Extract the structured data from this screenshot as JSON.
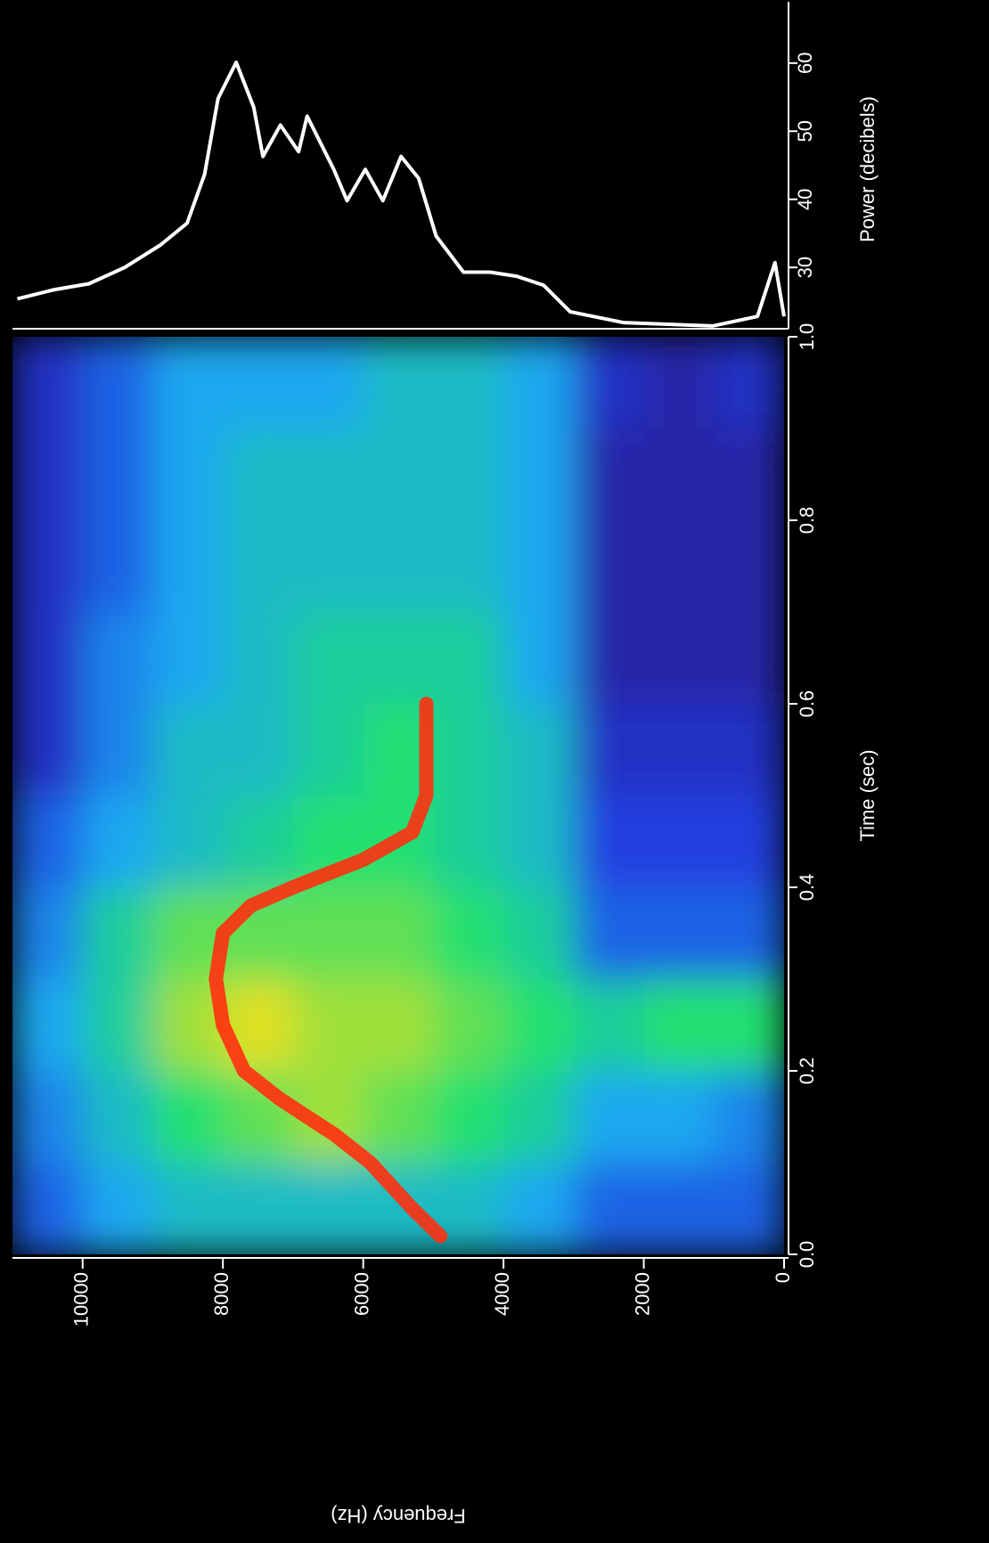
{
  "chart_data": [
    {
      "type": "line",
      "ylabel": "Power (decibels)",
      "x": [
        0,
        130,
        380,
        1020,
        2290,
        3050,
        3430,
        3810,
        4190,
        4570,
        4960,
        5210,
        5460,
        5720,
        5970,
        6230,
        6420,
        6800,
        6920,
        7180,
        7430,
        7560,
        7810,
        8070,
        8260,
        8510,
        8890,
        9400,
        9910,
        10420,
        10930
      ],
      "values": [
        22.8,
        30.7,
        22.8,
        21.4,
        21.9,
        23.5,
        27.4,
        28.7,
        29.3,
        29.3,
        34.6,
        43.1,
        46.3,
        39.8,
        44.4,
        39.8,
        44.4,
        52.2,
        47.0,
        50.9,
        46.3,
        53.5,
        60.1,
        54.8,
        43.7,
        36.5,
        33.3,
        30.0,
        27.6,
        26.7,
        25.4
      ],
      "color": "#ffffff",
      "xlim": [
        0,
        11000
      ],
      "ylim": [
        21,
        69
      ],
      "yticks": [
        30,
        40,
        50,
        60
      ]
    },
    {
      "type": "heatmap",
      "xlabel": "Frequency (Hz)",
      "ylabel": "Time (sec)",
      "xlim": [
        0,
        11000
      ],
      "ylim": [
        0,
        1
      ],
      "xticks": [
        0,
        2000,
        4000,
        6000,
        8000,
        10000
      ],
      "yticks": [
        {
          "value": 0,
          "label": "0.0"
        },
        0.2,
        0.4,
        0.6,
        0.8,
        {
          "value": 1,
          "label": "1.0"
        }
      ],
      "freq_bins": [
        0,
        1000,
        2000,
        3000,
        4000,
        5000,
        6000,
        7000,
        8000,
        9000,
        10000,
        11000
      ],
      "time_bins": [
        0,
        0.1,
        0.2,
        0.3,
        0.4,
        0.5,
        0.6,
        0.7,
        0.8,
        0.9,
        1
      ],
      "z": [
        [
          30,
          30,
          30,
          34,
          36,
          36,
          36,
          36,
          36,
          34,
          30
        ],
        [
          32,
          34,
          34,
          38,
          40,
          42,
          44,
          42,
          40,
          36,
          32
        ],
        [
          40,
          40,
          38,
          40,
          42,
          44,
          44,
          46,
          44,
          38,
          34
        ],
        [
          30,
          30,
          30,
          38,
          40,
          42,
          42,
          42,
          42,
          38,
          32
        ],
        [
          28,
          28,
          28,
          36,
          38,
          40,
          40,
          38,
          36,
          34,
          30
        ],
        [
          26,
          26,
          26,
          36,
          38,
          40,
          38,
          36,
          36,
          32,
          26
        ],
        [
          24,
          24,
          24,
          34,
          38,
          38,
          38,
          36,
          34,
          32,
          26
        ],
        [
          24,
          24,
          24,
          34,
          36,
          36,
          36,
          36,
          34,
          30,
          26
        ],
        [
          24,
          24,
          24,
          34,
          36,
          36,
          36,
          36,
          34,
          30,
          26
        ],
        [
          26,
          24,
          26,
          34,
          36,
          36,
          34,
          34,
          34,
          30,
          26
        ]
      ],
      "zlim": [
        22,
        52
      ],
      "colormap": [
        "#2a1a8c",
        "#2040e0",
        "#1ea8f0",
        "#20e070",
        "#e0e020",
        "#e03020"
      ],
      "ridge": {
        "x": [
          0.02,
          0.05,
          0.1,
          0.13,
          0.17,
          0.2,
          0.25,
          0.3,
          0.35,
          0.38,
          0.4,
          0.43,
          0.46,
          0.5,
          0.55,
          0.6
        ],
        "values": [
          4900,
          5300,
          5900,
          6400,
          7200,
          7700,
          8000,
          8100,
          8000,
          7600,
          7000,
          6000,
          5300,
          5100,
          5100,
          5100
        ],
        "color": "#ff3010"
      }
    }
  ]
}
